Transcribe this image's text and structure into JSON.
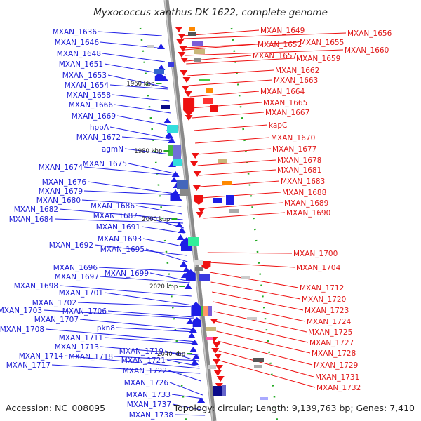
{
  "title": "Myxococcus xanthus DK 1622, complete genome",
  "footer": {
    "accession": "Accession: NC_008095",
    "info": "Topology: circular; Length: 9,139,763 bp; Genes: 7,410"
  },
  "colors": {
    "forward_strand": "#1e1ee6",
    "reverse_strand": "#ee1111",
    "left_label": "#1a1ad4",
    "right_label": "#e01818",
    "backbone": "#8a8a8a",
    "tick": "#22aa22"
  },
  "scale_ticks": [
    "1960 kbp",
    "1980 kbp",
    "2000 kbp",
    "2020 kbp",
    "2040 kbp"
  ],
  "left_genes": [
    "MXAN_1636",
    "MXAN_1646",
    "MXAN_1648",
    "MXAN_1651",
    "MXAN_1653",
    "MXAN_1654",
    "MXAN_1658",
    "MXAN_1666",
    "MXAN_1669",
    "hppA",
    "MXAN_1672",
    "agmN",
    "MXAN_1674",
    "MXAN_1675",
    "MXAN_1676",
    "MXAN_1679",
    "MXAN_1680",
    "MXAN_1686",
    "MXAN_1682",
    "MXAN_1687",
    "MXAN_1684",
    "MXAN_1691",
    "MXAN_1693",
    "MXAN_1692",
    "MXAN_1695",
    "MXAN_1696",
    "MXAN_1697",
    "MXAN_1699",
    "MXAN_1698",
    "MXAN_1701",
    "MXAN_1702",
    "MXAN_1706",
    "MXAN_1703",
    "MXAN_1707",
    "MXAN_1708",
    "pkn8",
    "MXAN_1711",
    "MXAN_1713",
    "MXAN_1719",
    "MXAN_1714",
    "MXAN_1718",
    "MXAN_1721",
    "MXAN_1717",
    "MXAN_1722",
    "MXAN_1726",
    "MXAN_1733",
    "MXAN_1737",
    "MXAN_1738"
  ],
  "right_genes": [
    "MXAN_1649",
    "MXAN_1656",
    "MXAN_1652",
    "MXAN_1655",
    "MXAN_1660",
    "MXAN_1657",
    "MXAN_1659",
    "MXAN_1662",
    "MXAN_1663",
    "MXAN_1664",
    "MXAN_1665",
    "MXAN_1667",
    "kapC",
    "MXAN_1670",
    "MXAN_1677",
    "MXAN_1678",
    "MXAN_1681",
    "MXAN_1683",
    "MXAN_1688",
    "MXAN_1689",
    "MXAN_1690",
    "MXAN_1700",
    "MXAN_1704",
    "MXAN_1712",
    "MXAN_1720",
    "MXAN_1723",
    "MXAN_1724",
    "MXAN_1725",
    "MXAN_1727",
    "MXAN_1728",
    "MXAN_1729",
    "MXAN_1731",
    "MXAN_1732"
  ]
}
